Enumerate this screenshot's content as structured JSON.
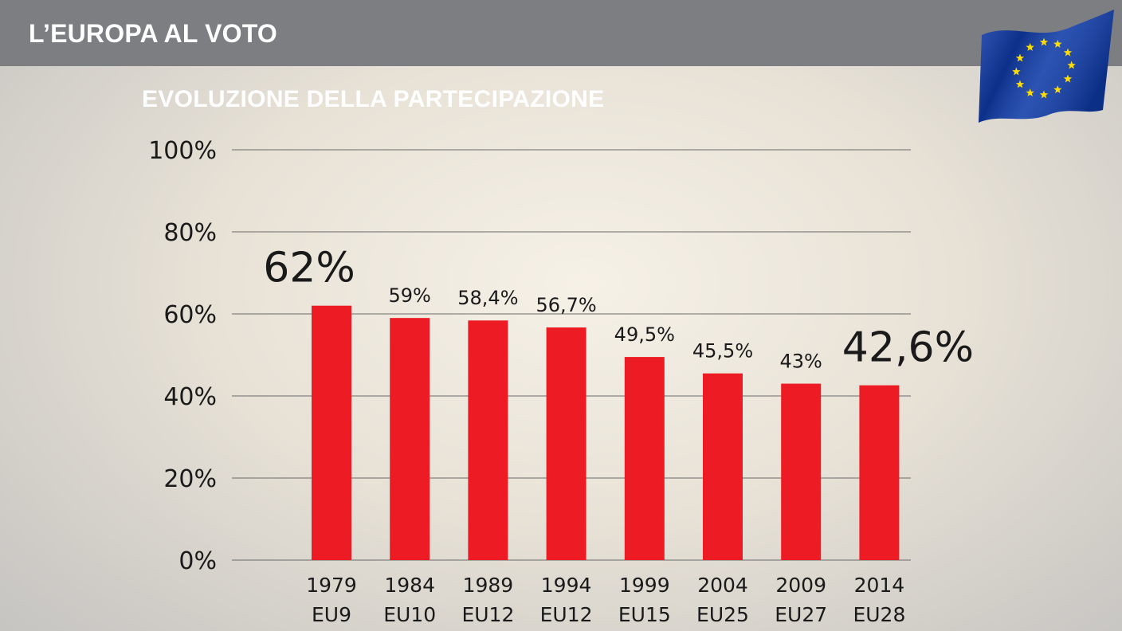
{
  "header": {
    "title": "L’EUROPA AL VOTO"
  },
  "chart_data": {
    "type": "bar",
    "title": "EVOLUZIONE DELLA PARTECIPAZIONE",
    "categories": [
      "1979",
      "1984",
      "1989",
      "1994",
      "1999",
      "2004",
      "2009",
      "2014"
    ],
    "sublabels": [
      "EU9",
      "EU10",
      "EU12",
      "EU12",
      "EU15",
      "EU25",
      "EU27",
      "EU28"
    ],
    "values": [
      62,
      59,
      58.4,
      56.7,
      49.5,
      45.5,
      43,
      42.6
    ],
    "data_labels": [
      "62%",
      "59%",
      "58,4%",
      "56,7%",
      "49,5%",
      "45,5%",
      "43%",
      "42,6%"
    ],
    "highlighted": [
      true,
      false,
      false,
      false,
      false,
      false,
      false,
      true
    ],
    "ylim": [
      0,
      100
    ],
    "yticks": [
      0,
      20,
      40,
      60,
      80,
      100
    ],
    "ytick_labels": [
      "0%",
      "20%",
      "40%",
      "60%",
      "80%",
      "100%"
    ],
    "grid": true,
    "bar_color": "#ed1c24",
    "xlabel": "",
    "ylabel": ""
  },
  "flag": {
    "icon": "eu-flag-icon",
    "color": "#0f3ba8",
    "star_color": "#ffdd00"
  }
}
